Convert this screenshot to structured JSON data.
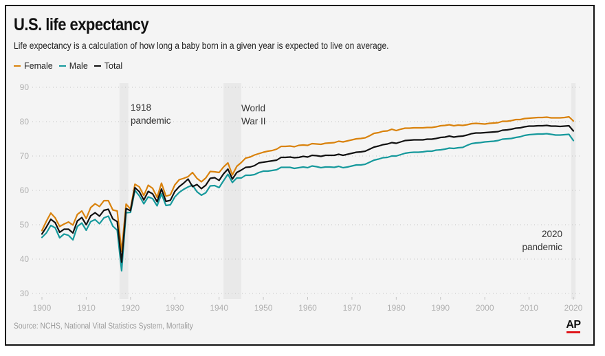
{
  "chart_data": {
    "type": "line",
    "title": "U.S. life expectancy",
    "subtitle": "Life expectancy is a calculation of how long a baby born in a given year is expected to live on average.",
    "source": "Source: NCHS, National Vital Statistics System, Mortality",
    "logo": "AP",
    "xlabel": "",
    "ylabel": "",
    "xlim": [
      1900,
      2020
    ],
    "ylim": [
      30,
      90
    ],
    "x_ticks": [
      "1900",
      "1910",
      "1920",
      "1930",
      "1940",
      "1950",
      "1960",
      "1970",
      "1980",
      "1990",
      "2000",
      "2010",
      "2020"
    ],
    "y_ticks": [
      "30",
      "40",
      "50",
      "60",
      "70",
      "80",
      "90"
    ],
    "grid": true,
    "legend": {
      "position": "top-left",
      "entries": [
        "Female",
        "Male",
        "Total"
      ]
    },
    "annotations": [
      {
        "lines": [
          "1918",
          "pandemic"
        ],
        "x_range": [
          1917.5,
          1919.5
        ]
      },
      {
        "lines": [
          "World",
          "War II"
        ],
        "x_range": [
          1941,
          1945
        ]
      },
      {
        "lines": [
          "2020",
          "pandemic"
        ],
        "x_range": [
          2019.5,
          2020.5
        ]
      }
    ],
    "x": [
      1900,
      1901,
      1902,
      1903,
      1904,
      1905,
      1906,
      1907,
      1908,
      1909,
      1910,
      1911,
      1912,
      1913,
      1914,
      1915,
      1916,
      1917,
      1918,
      1919,
      1920,
      1921,
      1922,
      1923,
      1924,
      1925,
      1926,
      1927,
      1928,
      1929,
      1930,
      1931,
      1932,
      1933,
      1934,
      1935,
      1936,
      1937,
      1938,
      1939,
      1940,
      1941,
      1942,
      1943,
      1944,
      1945,
      1946,
      1947,
      1948,
      1949,
      1950,
      1951,
      1952,
      1953,
      1954,
      1955,
      1956,
      1957,
      1958,
      1959,
      1960,
      1961,
      1962,
      1963,
      1964,
      1965,
      1966,
      1967,
      1968,
      1969,
      1970,
      1971,
      1972,
      1973,
      1974,
      1975,
      1976,
      1977,
      1978,
      1979,
      1980,
      1981,
      1982,
      1983,
      1984,
      1985,
      1986,
      1987,
      1988,
      1989,
      1990,
      1991,
      1992,
      1993,
      1994,
      1995,
      1996,
      1997,
      1998,
      1999,
      2000,
      2001,
      2002,
      2003,
      2004,
      2005,
      2006,
      2007,
      2008,
      2009,
      2010,
      2011,
      2012,
      2013,
      2014,
      2015,
      2016,
      2017,
      2018,
      2019,
      2020
    ],
    "series": [
      {
        "name": "Female",
        "color": "#d9820c",
        "values": [
          48.3,
          51.0,
          53.4,
          52.0,
          49.5,
          50.2,
          50.8,
          49.9,
          53.0,
          54.0,
          51.8,
          55.0,
          56.1,
          55.3,
          57.0,
          57.0,
          54.3,
          54.0,
          42.2,
          56.0,
          54.6,
          61.8,
          61.0,
          58.5,
          61.5,
          60.6,
          58.0,
          62.1,
          58.3,
          58.7,
          61.6,
          63.1,
          63.5,
          64.0,
          65.2,
          63.5,
          62.5,
          63.6,
          65.5,
          65.4,
          65.2,
          66.8,
          68.0,
          64.5,
          67.0,
          68.1,
          69.4,
          69.7,
          70.3,
          70.7,
          71.1,
          71.4,
          71.6,
          72.0,
          72.8,
          72.8,
          72.9,
          72.7,
          73.1,
          73.2,
          73.1,
          73.6,
          73.5,
          73.4,
          73.7,
          73.8,
          73.9,
          74.3,
          74.1,
          74.4,
          74.7,
          75.0,
          75.1,
          75.3,
          75.9,
          76.6,
          76.8,
          77.2,
          77.3,
          77.8,
          77.4,
          77.8,
          78.1,
          78.1,
          78.2,
          78.2,
          78.2,
          78.3,
          78.3,
          78.5,
          78.8,
          78.9,
          79.1,
          78.8,
          79.0,
          78.9,
          79.1,
          79.4,
          79.5,
          79.4,
          79.3,
          79.5,
          79.6,
          79.7,
          80.1,
          80.1,
          80.3,
          80.6,
          80.6,
          80.9,
          81.0,
          81.1,
          81.2,
          81.2,
          81.3,
          81.1,
          81.1,
          81.1,
          81.2,
          81.4,
          80.2
        ]
      },
      {
        "name": "Male",
        "color": "#16999c",
        "values": [
          46.3,
          47.6,
          49.8,
          49.1,
          46.2,
          47.3,
          46.9,
          45.6,
          49.5,
          50.5,
          48.4,
          50.9,
          51.5,
          50.3,
          52.0,
          52.5,
          49.6,
          48.4,
          36.6,
          53.5,
          53.6,
          60.0,
          58.4,
          56.1,
          58.1,
          57.6,
          55.5,
          59.0,
          55.6,
          55.8,
          58.1,
          59.4,
          60.3,
          61.0,
          61.5,
          59.6,
          58.6,
          59.3,
          61.3,
          61.4,
          60.8,
          62.8,
          64.7,
          62.3,
          63.6,
          63.6,
          64.4,
          64.4,
          64.6,
          65.2,
          65.6,
          65.6,
          65.8,
          66.0,
          66.7,
          66.7,
          66.7,
          66.4,
          66.6,
          66.8,
          66.6,
          67.1,
          66.9,
          66.6,
          66.8,
          66.8,
          66.7,
          67.0,
          66.6,
          66.8,
          67.1,
          67.4,
          67.4,
          67.6,
          68.2,
          68.8,
          69.1,
          69.5,
          69.6,
          70.0,
          70.0,
          70.4,
          70.8,
          71.0,
          71.1,
          71.1,
          71.2,
          71.4,
          71.4,
          71.7,
          71.8,
          72.0,
          72.3,
          72.2,
          72.4,
          72.5,
          73.1,
          73.6,
          73.8,
          73.9,
          74.1,
          74.2,
          74.3,
          74.5,
          74.9,
          75.0,
          75.1,
          75.4,
          75.6,
          76.0,
          76.2,
          76.3,
          76.4,
          76.4,
          76.5,
          76.3,
          76.1,
          76.1,
          76.2,
          76.3,
          74.5
        ]
      },
      {
        "name": "Total",
        "color": "#111111",
        "values": [
          47.3,
          49.3,
          51.6,
          50.6,
          47.8,
          48.7,
          48.7,
          47.6,
          51.1,
          52.1,
          50.0,
          52.6,
          53.5,
          52.5,
          54.2,
          54.5,
          51.7,
          50.9,
          39.1,
          54.7,
          54.1,
          60.8,
          59.6,
          57.2,
          59.7,
          59.0,
          56.7,
          60.4,
          56.8,
          57.1,
          59.7,
          61.1,
          62.1,
          63.3,
          61.1,
          61.7,
          60.5,
          61.5,
          63.5,
          63.7,
          62.9,
          64.8,
          66.2,
          63.3,
          65.2,
          65.9,
          66.7,
          66.8,
          67.2,
          68.0,
          68.2,
          68.4,
          68.6,
          68.8,
          69.6,
          69.6,
          69.7,
          69.5,
          69.6,
          69.9,
          69.7,
          70.2,
          70.1,
          69.9,
          70.2,
          70.2,
          70.2,
          70.5,
          70.2,
          70.5,
          70.8,
          71.1,
          71.2,
          71.4,
          72.0,
          72.6,
          72.9,
          73.3,
          73.5,
          73.9,
          73.7,
          74.1,
          74.5,
          74.6,
          74.7,
          74.7,
          74.7,
          74.9,
          74.9,
          75.1,
          75.4,
          75.5,
          75.8,
          75.5,
          75.7,
          75.8,
          76.1,
          76.5,
          76.7,
          76.7,
          76.8,
          76.9,
          77.0,
          77.1,
          77.5,
          77.6,
          77.8,
          78.1,
          78.2,
          78.5,
          78.7,
          78.7,
          78.8,
          78.8,
          78.9,
          78.7,
          78.7,
          78.6,
          78.7,
          78.8,
          77.3
        ]
      }
    ]
  }
}
